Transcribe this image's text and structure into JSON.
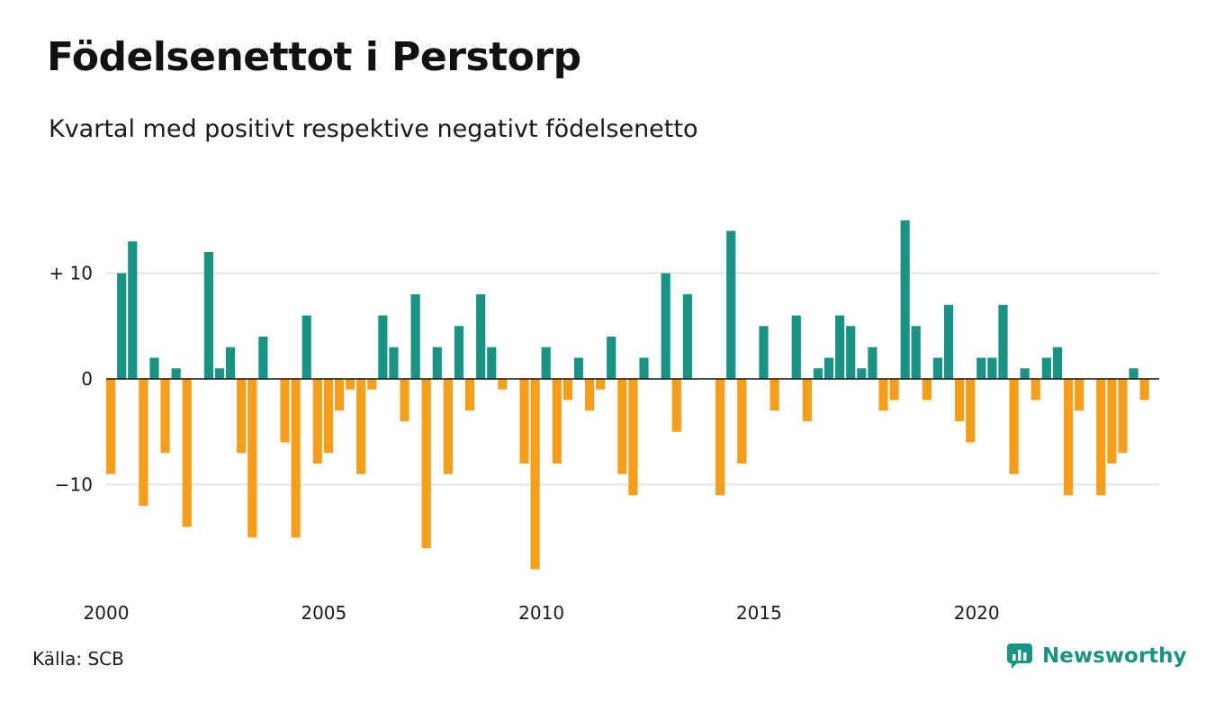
{
  "header": {
    "title": "Födelsenettot i Perstorp",
    "subtitle": "Kvartal med positivt respektive negativt födelsenetto"
  },
  "footer": {
    "source": "Källa: SCB",
    "brand": "Newsworthy"
  },
  "colors": {
    "positive": "#1b9384",
    "negative": "#f59e1c",
    "grid": "#e3e3e3",
    "zero_line": "#111111",
    "brand": "#1b9384"
  },
  "chart_data": {
    "type": "bar",
    "title": "Födelsenettot i Perstorp",
    "subtitle": "Kvartal med positivt respektive negativt födelsenetto",
    "xlabel": "",
    "ylabel": "",
    "start_year": 2000,
    "periods_per_year": 4,
    "ylim": [
      -19,
      16
    ],
    "yticks": [
      {
        "value": 10,
        "label": "+ 10"
      },
      {
        "value": 0,
        "label": "0"
      },
      {
        "value": -10,
        "label": "−10"
      }
    ],
    "xticks": [
      {
        "year": 2000,
        "label": "2000"
      },
      {
        "year": 2005,
        "label": "2005"
      },
      {
        "year": 2010,
        "label": "2010"
      },
      {
        "year": 2015,
        "label": "2015"
      },
      {
        "year": 2020,
        "label": "2020"
      }
    ],
    "grid": true,
    "legend": "none",
    "values": [
      -9,
      10,
      13,
      -12,
      2,
      -7,
      1,
      -14,
      0,
      12,
      1,
      3,
      -7,
      -15,
      4,
      0,
      -6,
      -15,
      6,
      -8,
      -7,
      -3,
      -1,
      -9,
      -1,
      6,
      3,
      -4,
      8,
      -16,
      3,
      -9,
      5,
      -3,
      8,
      3,
      -1,
      0,
      -8,
      -18,
      3,
      -8,
      -2,
      2,
      -3,
      -1,
      4,
      -9,
      -11,
      2,
      0,
      10,
      -5,
      8,
      0,
      0,
      -11,
      14,
      -8,
      0,
      5,
      -3,
      0,
      6,
      -4,
      1,
      2,
      6,
      5,
      1,
      3,
      -3,
      -2,
      15,
      5,
      -2,
      2,
      7,
      -4,
      -6,
      2,
      2,
      7,
      -9,
      1,
      -2,
      2,
      3,
      -11,
      -3,
      0,
      -11,
      -8,
      -7,
      1,
      -2
    ]
  }
}
